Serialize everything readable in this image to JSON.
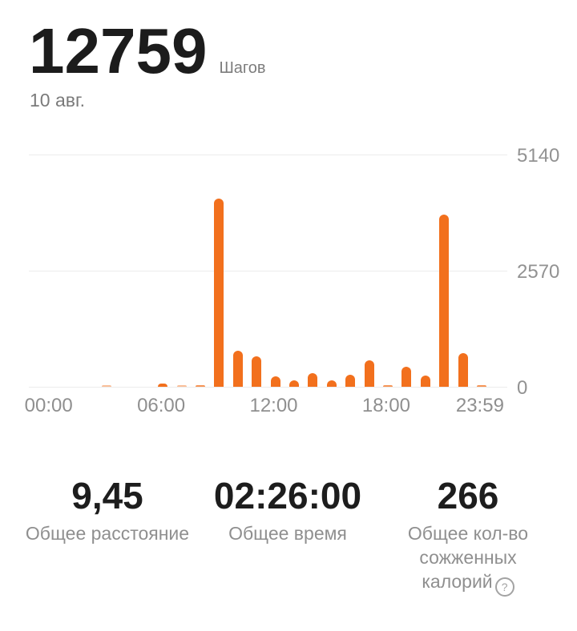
{
  "header": {
    "steps_value": "12759",
    "steps_unit": "Шагов",
    "date": "10 авг."
  },
  "colors": {
    "accent_orange": "#f2701d",
    "text_primary": "#1c1c1c",
    "text_secondary": "#7a7a7a",
    "text_tertiary": "#8f8f8f",
    "gridline": "#ececec"
  },
  "chart_data": {
    "type": "bar",
    "x_unit": "hour of day",
    "values": [
      0,
      0,
      0,
      25,
      0,
      0,
      70,
      25,
      30,
      4170,
      790,
      675,
      225,
      135,
      295,
      145,
      270,
      590,
      35,
      440,
      250,
      3809,
      740,
      40
    ],
    "x_ticks": [
      {
        "hour": 0,
        "label": "00:00"
      },
      {
        "hour": 6,
        "label": "06:00"
      },
      {
        "hour": 12,
        "label": "12:00"
      },
      {
        "hour": 18,
        "label": "18:00"
      },
      {
        "hour": 23,
        "label": "23:59"
      }
    ],
    "y_ticks": [
      {
        "value": 0,
        "label": "0"
      },
      {
        "value": 2570,
        "label": "2570"
      },
      {
        "value": 5140,
        "label": "5140"
      }
    ],
    "ylim": [
      0,
      5140
    ],
    "grid": true,
    "legend": false,
    "bar_color": "#f2701d"
  },
  "stats": [
    {
      "value": "9,45",
      "label_lines": [
        "Общее расстояние"
      ]
    },
    {
      "value": "02:26:00",
      "label_lines": [
        "Общее время"
      ]
    },
    {
      "value": "266",
      "label_lines": [
        "Общее кол-во",
        "сожженных",
        "калорий"
      ],
      "help_glyph": "?"
    }
  ]
}
